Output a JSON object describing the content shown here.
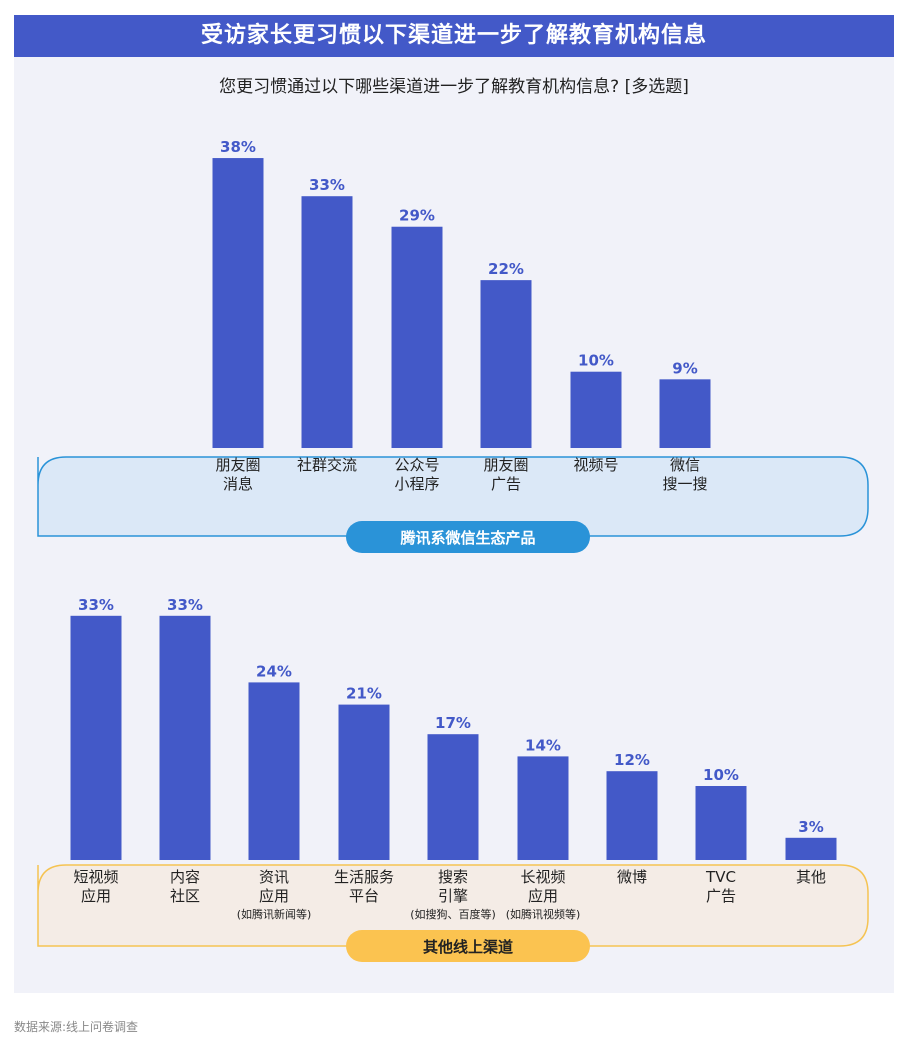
{
  "banner": "受访家长更习惯以下渠道进一步了解教育机构信息",
  "subtitle": "您更习惯通过以下哪些渠道进一步了解教育机构信息? [多选题]",
  "source": "数据来源:线上问卷调查",
  "colors": {
    "banner": "#4359c8",
    "bar": "#4359c8",
    "label": "#4359c8",
    "group1_border": "#2a93d8",
    "group1_fill": "#dbe8f7",
    "group1_pill": "#2a93d8",
    "group2_border": "#f5c352",
    "group2_fill": "#f4ece6",
    "group2_pill": "#fbc350"
  },
  "chart_data": [
    {
      "type": "bar",
      "group": "腾讯系微信生态产品",
      "categories": [
        [
          "朋友圈",
          "消息"
        ],
        [
          "社群交流"
        ],
        [
          "公众号",
          "小程序"
        ],
        [
          "朋友圈",
          "广告"
        ],
        [
          "视频号"
        ],
        [
          "微信",
          "搜一搜"
        ]
      ],
      "values": [
        38,
        33,
        29,
        22,
        10,
        9
      ],
      "value_labels": [
        "38%",
        "33%",
        "29%",
        "22%",
        "10%",
        "9%"
      ]
    },
    {
      "type": "bar",
      "group": "其他线上渠道",
      "categories": [
        [
          "短视频",
          "应用"
        ],
        [
          "内容",
          "社区"
        ],
        [
          "资讯",
          "应用",
          "(如腾讯新闻等)"
        ],
        [
          "生活服务",
          "平台"
        ],
        [
          "搜索",
          "引擎",
          "(如搜狗、百度等)"
        ],
        [
          "长视频",
          "应用",
          "(如腾讯视频等)"
        ],
        [
          "微博"
        ],
        [
          "TVC",
          "广告"
        ],
        [
          "其他"
        ]
      ],
      "values": [
        33,
        33,
        24,
        21,
        17,
        14,
        12,
        10,
        3
      ],
      "value_labels": [
        "33%",
        "33%",
        "24%",
        "21%",
        "17%",
        "14%",
        "12%",
        "10%",
        "3%"
      ]
    }
  ]
}
